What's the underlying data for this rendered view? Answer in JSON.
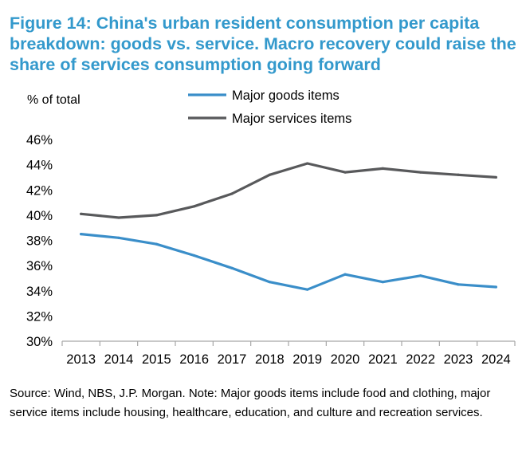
{
  "header": {
    "title": "Figure 14: China's urban resident consumption per capita breakdown: goods vs. service. Macro recovery could raise the share of services consumption going forward"
  },
  "footer": {
    "source": "Source: Wind, NBS, J.P. Morgan. Note: Major goods items include food and clothing, major service items include housing, healthcare, education, and culture and recreation services."
  },
  "colors": {
    "title": "#3399cc",
    "goods": "#3a8ec9",
    "services": "#58595b",
    "axis": "#a6a6a6"
  },
  "chart_data": {
    "type": "line",
    "title": "Figure 14: China's urban resident consumption per capita breakdown: goods vs. service. Macro recovery could raise the share of services consumption going forward",
    "ylabel": "% of total",
    "xlabel": "",
    "categories": [
      "2013",
      "2014",
      "2015",
      "2016",
      "2017",
      "2018",
      "2019",
      "2020",
      "2021",
      "2022",
      "2023",
      "2024"
    ],
    "ylim": [
      30,
      46
    ],
    "yticks": [
      30,
      32,
      34,
      36,
      38,
      40,
      42,
      44,
      46
    ],
    "ytick_labels": [
      "30%",
      "32%",
      "34%",
      "36%",
      "38%",
      "40%",
      "42%",
      "44%",
      "46%"
    ],
    "grid": false,
    "legend_position": "top-center",
    "series": [
      {
        "name": "Major goods items",
        "color": "#3a8ec9",
        "values": [
          38.5,
          38.2,
          37.7,
          36.8,
          35.8,
          34.7,
          34.1,
          35.3,
          34.7,
          35.2,
          34.5,
          34.3
        ]
      },
      {
        "name": "Major services items",
        "color": "#58595b",
        "values": [
          40.1,
          39.8,
          40.0,
          40.7,
          41.7,
          43.2,
          44.1,
          43.4,
          43.7,
          43.4,
          43.2,
          43.0
        ]
      }
    ]
  }
}
